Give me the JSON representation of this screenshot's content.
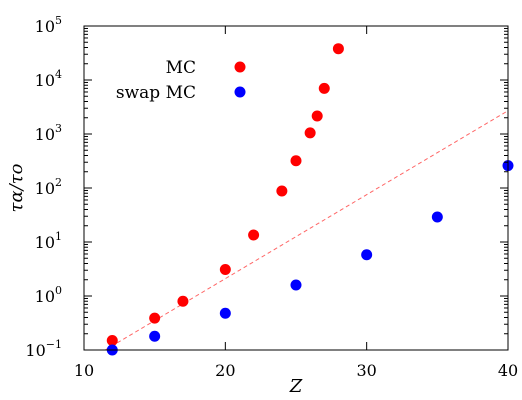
{
  "chart_data": {
    "type": "scatter",
    "xlabel": "Z",
    "ylabel": "τα/τo",
    "xlim": [
      10,
      40
    ],
    "ylim": [
      0.1,
      100000
    ],
    "yscale": "log",
    "x_ticks": [
      10,
      20,
      30,
      40
    ],
    "x_tick_labels": [
      "10",
      "20",
      "30",
      "40"
    ],
    "y_ticks": [
      0.1,
      1,
      10,
      100,
      1000,
      10000,
      100000
    ],
    "y_tick_base": [
      "10",
      "10",
      "10",
      "10",
      "10",
      "10",
      "10"
    ],
    "y_tick_exp": [
      "−1",
      "0",
      "1",
      "2",
      "3",
      "4",
      "5"
    ],
    "grid": false,
    "legend_position": "top-left",
    "series": [
      {
        "name": "MC",
        "color": "#ff0000",
        "marker": "circle",
        "x": [
          12,
          15,
          17,
          20,
          22,
          24,
          25,
          26,
          26.5,
          27,
          28
        ],
        "y": [
          0.15,
          0.39,
          0.8,
          3.1,
          13.5,
          88,
          320,
          1050,
          2150,
          7000,
          38000
        ]
      },
      {
        "name": "swap MC",
        "color": "#0000ff",
        "marker": "circle",
        "x": [
          12,
          15,
          20,
          25,
          30,
          35,
          40
        ],
        "y": [
          0.1,
          0.18,
          0.48,
          1.6,
          5.8,
          29,
          260
        ]
      }
    ],
    "fit_line": {
      "style": "dashed",
      "color": "#ff6666",
      "x": [
        11.5,
        40
      ],
      "y": [
        0.1,
        2700
      ]
    }
  }
}
